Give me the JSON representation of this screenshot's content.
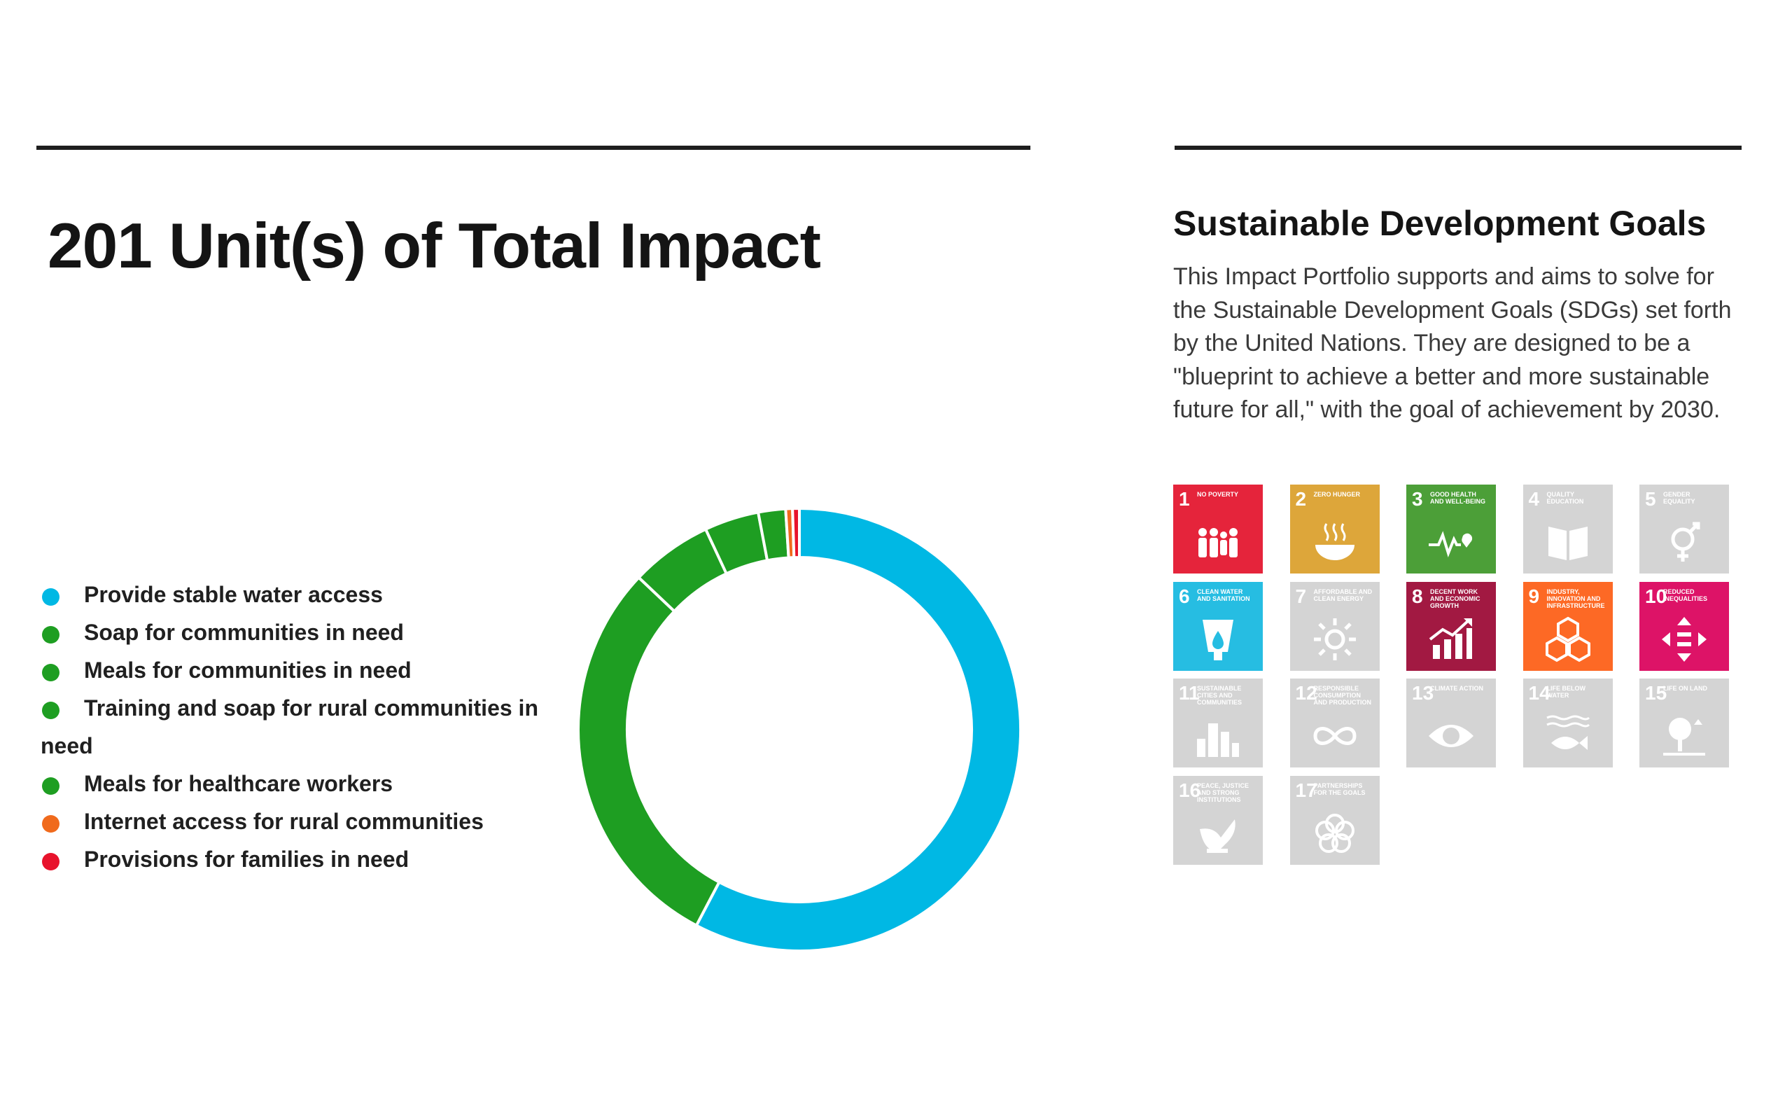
{
  "header": {
    "title": "201 Unit(s) of Total Impact"
  },
  "chart_data": {
    "type": "pie",
    "donut": true,
    "categories": [
      "Provide stable water access",
      "Soap for communities in need",
      "Meals for communities in need",
      "Training and soap for rural communities in need",
      "Meals for healthcare workers",
      "Internet access for rural communities",
      "Provisions for families in need"
    ],
    "values": [
      116,
      59,
      12,
      8,
      4,
      1,
      1
    ],
    "colors": [
      "#00b8e4",
      "#1e9e22",
      "#1e9e22",
      "#1e9e22",
      "#1e9e22",
      "#f06a1c",
      "#e8132c"
    ],
    "legend_position": "left"
  },
  "legend": {
    "items": [
      {
        "label": "Provide stable water access",
        "color": "#00b8e4"
      },
      {
        "label": "Soap for communities in need",
        "color": "#1e9e22"
      },
      {
        "label": "Meals for communities in need",
        "color": "#1e9e22"
      },
      {
        "label_line1": "Training and soap for rural communities in",
        "label_line2": "need",
        "color": "#1e9e22"
      },
      {
        "label": "Meals for healthcare workers",
        "color": "#1e9e22"
      },
      {
        "label": "Internet access for rural communities",
        "color": "#f06a1c"
      },
      {
        "label": "Provisions for families in need",
        "color": "#e8132c"
      }
    ]
  },
  "sdg": {
    "title": "Sustainable Development Goals",
    "description": "This Impact Portfolio supports and aims to solve for the Sustainable Development Goals (SDGs) set forth by the United Nations. They are designed to be a \"blueprint to achieve a better and more sustainable future for all,\" with the goal of achievement by 2030.",
    "goals": [
      {
        "number": "1",
        "label": "No poverty",
        "active": true,
        "color": "#e5243b",
        "icon": "family-icon"
      },
      {
        "number": "2",
        "label": "Zero hunger",
        "active": true,
        "color": "#dda63a",
        "icon": "bowl-icon"
      },
      {
        "number": "3",
        "label": "Good health and well-being",
        "active": true,
        "color": "#4c9f38",
        "icon": "heartbeat-icon"
      },
      {
        "number": "4",
        "label": "Quality education",
        "active": false,
        "color": "#c5192d",
        "icon": "book-icon"
      },
      {
        "number": "5",
        "label": "Gender equality",
        "active": false,
        "color": "#ff3a21",
        "icon": "gender-icon"
      },
      {
        "number": "6",
        "label": "Clean water and sanitation",
        "active": true,
        "color": "#26bde2",
        "icon": "water-drop-icon"
      },
      {
        "number": "7",
        "label": "Affordable and clean energy",
        "active": false,
        "color": "#fcc30b",
        "icon": "sun-icon"
      },
      {
        "number": "8",
        "label": "Decent work and economic growth",
        "active": true,
        "color": "#a21942",
        "icon": "growth-chart-icon"
      },
      {
        "number": "9",
        "label": "Industry, innovation and infrastructure",
        "active": true,
        "color": "#fd6925",
        "icon": "cubes-icon"
      },
      {
        "number": "10",
        "label": "Reduced inequalities",
        "active": true,
        "color": "#dd1367",
        "icon": "arrows-icon"
      },
      {
        "number": "11",
        "label": "Sustainable cities and communities",
        "active": false,
        "color": "#fd9d24",
        "icon": "city-icon"
      },
      {
        "number": "12",
        "label": "Responsible consumption and production",
        "active": false,
        "color": "#bf8b2e",
        "icon": "infinity-icon"
      },
      {
        "number": "13",
        "label": "Climate action",
        "active": false,
        "color": "#3f7e44",
        "icon": "eye-globe-icon"
      },
      {
        "number": "14",
        "label": "Life below water",
        "active": false,
        "color": "#0a97d9",
        "icon": "fish-icon"
      },
      {
        "number": "15",
        "label": "Life on land",
        "active": false,
        "color": "#56c02b",
        "icon": "tree-icon"
      },
      {
        "number": "16",
        "label": "Peace, justice and strong institutions",
        "active": false,
        "color": "#00689d",
        "icon": "dove-icon"
      },
      {
        "number": "17",
        "label": "Partnerships for the goals",
        "active": false,
        "color": "#19486a",
        "icon": "flower-icon"
      }
    ]
  }
}
